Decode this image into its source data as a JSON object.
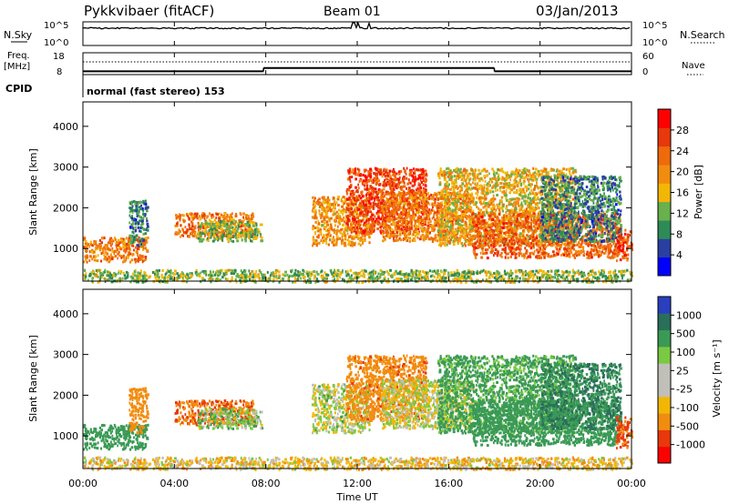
{
  "header": {
    "title": "Pykkvibaer (fitACF)",
    "beam": "Beam 01",
    "date": "03/Jan/2013"
  },
  "nsky_panel": {
    "left_label": "N.Sky",
    "right_label": "N.Search",
    "left_ticks": [
      "10^5",
      "10^0"
    ],
    "right_ticks": [
      "10^5",
      "10^0"
    ]
  },
  "freq_panel": {
    "left_label_1": "Freq.",
    "left_label_2": "[MHz]",
    "right_label": "Nave",
    "left_ticks": [
      "18",
      "8"
    ],
    "right_ticks": [
      "60",
      "0"
    ]
  },
  "cpid": {
    "label": "CPID",
    "value": "normal (fast stereo) 153"
  },
  "xaxis": {
    "label": "Time UT",
    "ticks": [
      "00:00",
      "04:00",
      "08:00",
      "12:00",
      "16:00",
      "20:00",
      "00:00"
    ]
  },
  "power_panel": {
    "ylabel": "Slant Range [km]",
    "yticks": [
      "1000",
      "2000",
      "3000",
      "4000"
    ],
    "colorbar_label": "Power [dB]",
    "colorbar_ticks": [
      "4",
      "8",
      "12",
      "16",
      "20",
      "24",
      "28"
    ]
  },
  "velocity_panel": {
    "ylabel": "Slant Range [km]",
    "yticks": [
      "1000",
      "2000",
      "3000",
      "4000"
    ],
    "colorbar_label": "Velocity [m s⁻¹]",
    "colorbar_ticks": [
      "1000",
      "500",
      "100",
      "25",
      "-25",
      "-100",
      "-500",
      "-1000"
    ]
  },
  "colors": {
    "power_scale": [
      "#0000ff",
      "#2a3fa0",
      "#2e8b57",
      "#6ab04c",
      "#f2b705",
      "#f28c0f",
      "#ef6a0a",
      "#e8380c",
      "#ff0000"
    ],
    "velocity_scale": [
      "#2a3fbf",
      "#2a6f5a",
      "#3a9a55",
      "#7ac943",
      "#c0c0b8",
      "#c0c0b8",
      "#f2b705",
      "#f28c0f",
      "#e8380c",
      "#ff0000"
    ]
  },
  "chart_data": {
    "type": "heatmap",
    "x_range_hours": [
      0,
      24
    ],
    "y_range_km": [
      200,
      4600
    ],
    "frequency_series": [
      {
        "start_h": 0,
        "end_h": 7.9,
        "mhz": 9.5
      },
      {
        "start_h": 7.9,
        "end_h": 18,
        "mhz": 11.0
      },
      {
        "start_h": 18,
        "end_h": 24,
        "mhz": 9.5
      }
    ],
    "echo_regions": [
      {
        "t0": 0.0,
        "t1": 2.8,
        "r0": 700,
        "r1": 1300,
        "power": 22,
        "vel": 200
      },
      {
        "t0": 0.0,
        "t1": 24,
        "r0": 200,
        "r1": 500,
        "power": 14,
        "vel": -50
      },
      {
        "t0": 2.0,
        "t1": 2.8,
        "r0": 1100,
        "r1": 2200,
        "power": 10,
        "vel": -300
      },
      {
        "t0": 4.0,
        "t1": 7.5,
        "r0": 1300,
        "r1": 1900,
        "power": 22,
        "vel": -450
      },
      {
        "t0": 5.0,
        "t1": 7.8,
        "r0": 1200,
        "r1": 1700,
        "power": 14,
        "vel": 50
      },
      {
        "t0": 10.0,
        "t1": 12.5,
        "r0": 1100,
        "r1": 2300,
        "power": 20,
        "vel": 10
      },
      {
        "t0": 11.5,
        "t1": 15.0,
        "r0": 1400,
        "r1": 3000,
        "power": 26,
        "vel": -350
      },
      {
        "t0": 13.0,
        "t1": 17.0,
        "r0": 1200,
        "r1": 2400,
        "power": 22,
        "vel": 0
      },
      {
        "t0": 15.5,
        "t1": 21.5,
        "r0": 1100,
        "r1": 3000,
        "power": 18,
        "vel": 150
      },
      {
        "t0": 17.0,
        "t1": 23.5,
        "r0": 800,
        "r1": 1900,
        "power": 24,
        "vel": 250
      },
      {
        "t0": 20.0,
        "t1": 23.5,
        "r0": 1200,
        "r1": 2800,
        "power": 10,
        "vel": 500
      },
      {
        "t0": 23.3,
        "t1": 24,
        "r0": 700,
        "r1": 1500,
        "power": 26,
        "vel": -600
      }
    ]
  }
}
